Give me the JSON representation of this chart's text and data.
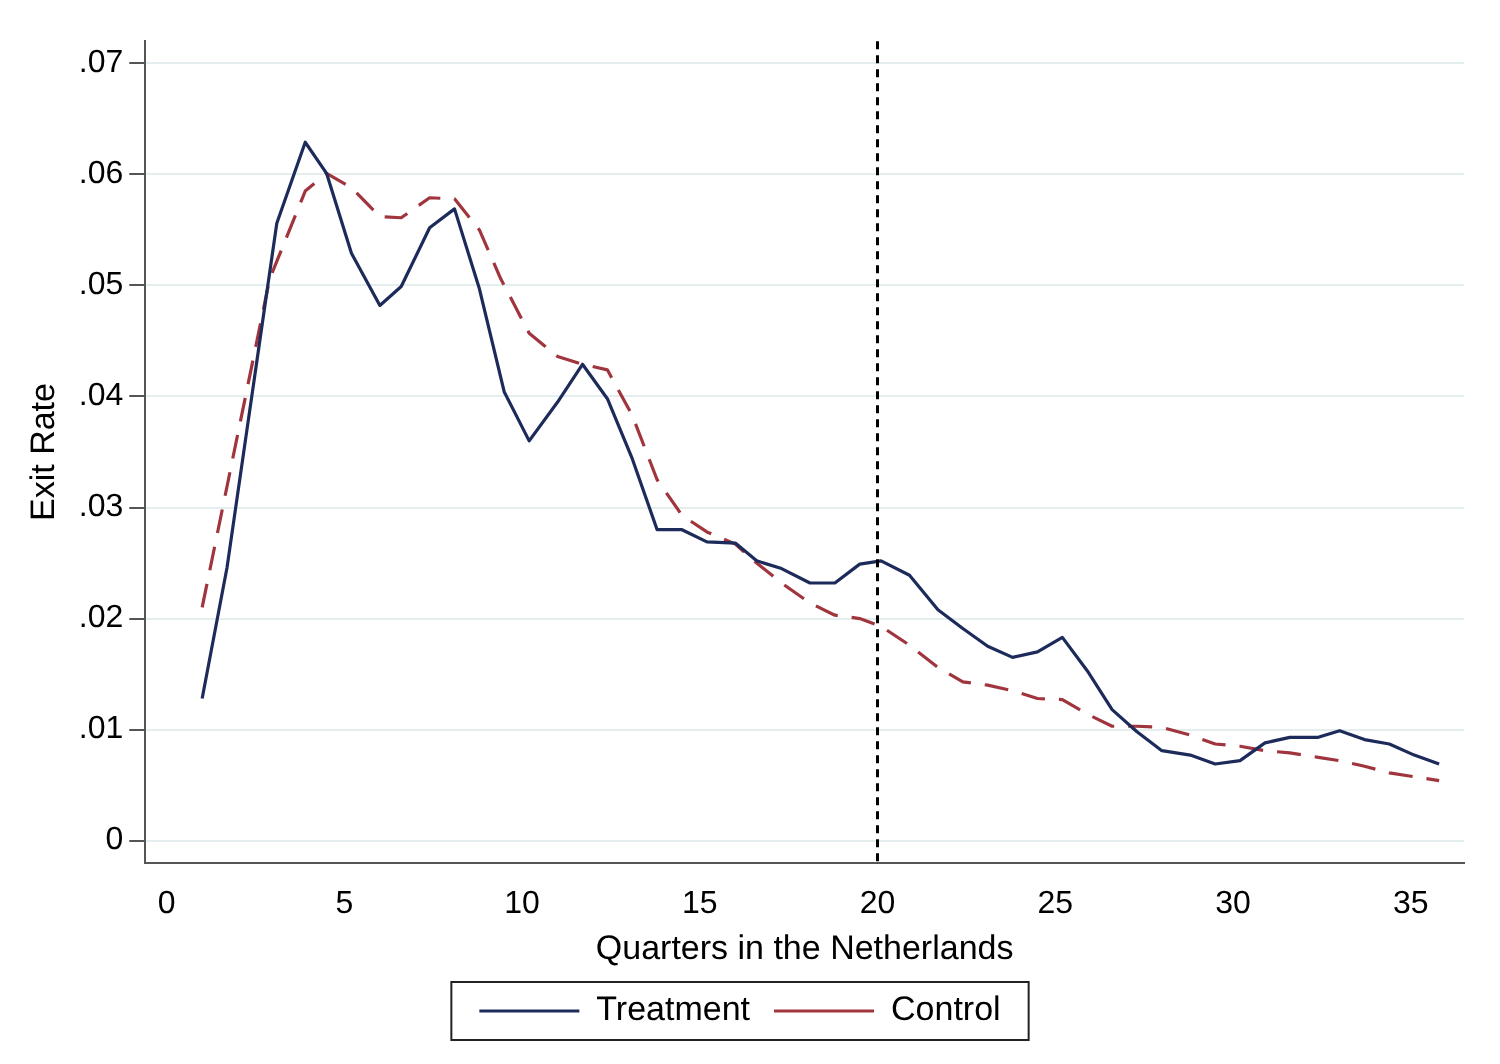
{
  "chart_data": {
    "type": "line",
    "xlabel": "Quarters in the Netherlands",
    "ylabel": "Exit Rate",
    "xlim": [
      -0.6,
      36.5
    ],
    "xticks": [
      0,
      5,
      10,
      15,
      20,
      25,
      30,
      35
    ],
    "ylim": [
      -0.002,
      0.072
    ],
    "yticks": [
      0,
      {
        "value": 0.01,
        "label": ".01"
      },
      {
        "value": 0.02,
        "label": ".02"
      },
      {
        "value": 0.03,
        "label": ".03"
      },
      {
        "value": 0.04,
        "label": ".04"
      },
      {
        "value": 0.05,
        "label": ".05"
      },
      {
        "value": 0.06,
        "label": ".06"
      },
      {
        "value": 0.07,
        "label": ".07"
      }
    ],
    "grid": "y",
    "legend": "bottom",
    "marker": "none",
    "ref_lines": [
      {
        "axis": "x",
        "value": 20,
        "color": "#000000",
        "line_style": "dashed"
      }
    ],
    "series": [
      {
        "name": "Treatment",
        "color": "#1c2b5a",
        "line_style": "solid",
        "x": [
          1,
          1.7,
          3.1,
          3.9,
          4.5,
          5.2,
          6,
          6.6,
          7.4,
          8.1,
          8.8,
          9.5,
          10.2,
          11,
          11.7,
          12.4,
          13.1,
          13.8,
          14.5,
          15.2,
          16,
          16.6,
          17.3,
          18.1,
          18.8,
          19.5,
          20.1,
          20.9,
          21.7,
          22.4,
          23.1,
          23.8,
          24.5,
          25.2,
          25.9,
          26.6,
          27.3,
          28,
          28.8,
          29.5,
          30.2,
          30.9,
          31.6,
          32.4,
          33,
          33.7,
          34.4,
          35.1,
          35.8
        ],
        "values": [
          0.0128,
          0.0246,
          0.0556,
          0.0629,
          0.0601,
          0.0529,
          0.0482,
          0.0499,
          0.0552,
          0.0569,
          0.0497,
          0.0404,
          0.036,
          0.0395,
          0.0429,
          0.0398,
          0.0344,
          0.028,
          0.028,
          0.0269,
          0.0268,
          0.0252,
          0.0245,
          0.0232,
          0.0232,
          0.0249,
          0.0252,
          0.0239,
          0.0208,
          0.0191,
          0.0175,
          0.0165,
          0.017,
          0.0183,
          0.0153,
          0.0118,
          0.0098,
          0.0081,
          0.0077,
          0.0069,
          0.0072,
          0.0088,
          0.0093,
          0.0093,
          0.0099,
          0.0091,
          0.0087,
          0.0077,
          0.0069
        ]
      },
      {
        "name": "Control",
        "color": "#a0353e",
        "line_style": "dashed",
        "x": [
          1,
          2.9,
          3.9,
          4.5,
          5.2,
          6,
          6.6,
          7.4,
          8.1,
          8.8,
          9.4,
          10.2,
          11,
          11.7,
          12.4,
          13.1,
          13.8,
          14.5,
          15.2,
          16,
          16.6,
          17.3,
          18.1,
          18.8,
          19.5,
          20.1,
          20.9,
          21.7,
          22.4,
          23.1,
          23.8,
          24.5,
          25.2,
          25.9,
          26.6,
          27.3,
          28,
          28.8,
          29.5,
          30.2,
          30.9,
          31.6,
          32.4,
          33,
          33.7,
          34.4,
          35.8
        ],
        "values": [
          0.021,
          0.0506,
          0.0585,
          0.0601,
          0.0588,
          0.0562,
          0.0561,
          0.0579,
          0.0578,
          0.055,
          0.0506,
          0.0457,
          0.0436,
          0.0429,
          0.0424,
          0.0383,
          0.0325,
          0.0293,
          0.0278,
          0.0267,
          0.025,
          0.0232,
          0.0214,
          0.0203,
          0.02,
          0.0193,
          0.0176,
          0.0156,
          0.0143,
          0.014,
          0.0135,
          0.0128,
          0.0127,
          0.0114,
          0.0103,
          0.0103,
          0.0102,
          0.0095,
          0.0087,
          0.0085,
          0.0081,
          0.0079,
          0.0075,
          0.0072,
          0.0067,
          0.0061,
          0.0054
        ]
      }
    ]
  }
}
